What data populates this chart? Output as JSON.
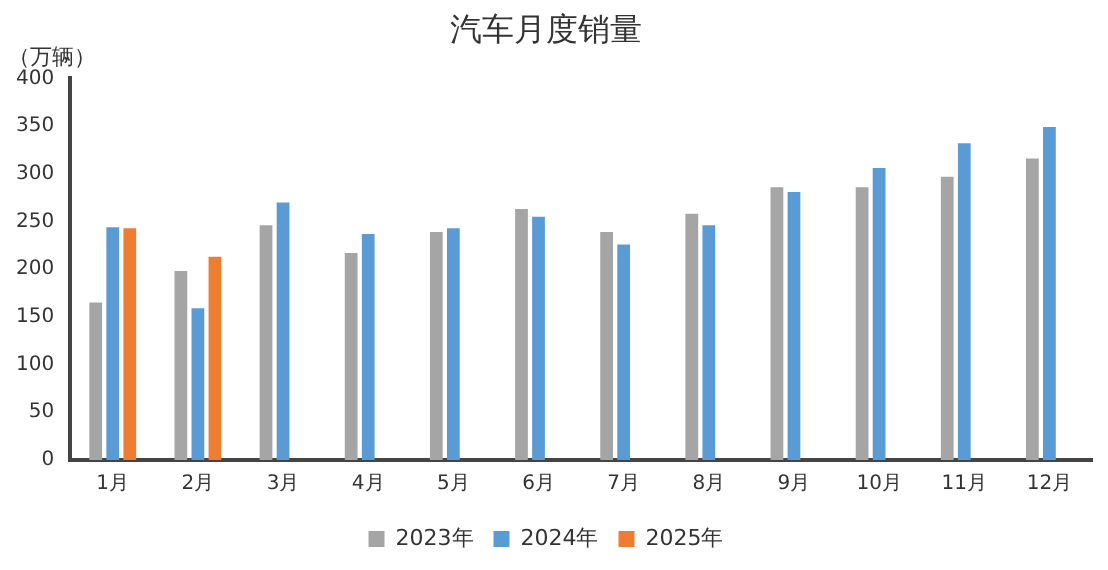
{
  "chart_data": {
    "type": "bar",
    "title": "汽车月度销量",
    "ylabel": "（万辆）",
    "categories": [
      "1月",
      "2月",
      "3月",
      "4月",
      "5月",
      "6月",
      "7月",
      "8月",
      "9月",
      "10月",
      "11月",
      "12月"
    ],
    "series": [
      {
        "name": "2023年",
        "color": "#a5a5a5",
        "values": [
          165,
          198,
          246,
          217,
          239,
          263,
          239,
          258,
          286,
          286,
          297,
          316
        ]
      },
      {
        "name": "2024年",
        "color": "#5b9bd5",
        "values": [
          244,
          159,
          270,
          237,
          243,
          255,
          226,
          246,
          281,
          306,
          332,
          349
        ]
      },
      {
        "name": "2025年",
        "color": "#ed7d31",
        "values": [
          243,
          213,
          null,
          null,
          null,
          null,
          null,
          null,
          null,
          null,
          null,
          null
        ]
      }
    ],
    "ylim": [
      0,
      400
    ],
    "yticks": [
      0,
      50,
      100,
      150,
      200,
      250,
      300,
      350,
      400
    ],
    "grid": false,
    "legend": "bottom"
  }
}
